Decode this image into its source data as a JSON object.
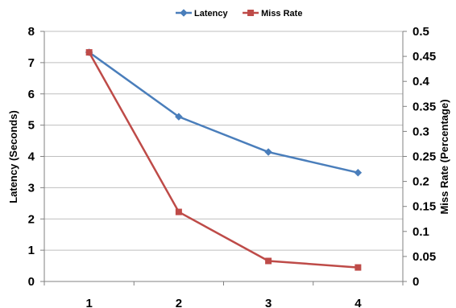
{
  "chart_data": {
    "type": "line",
    "categories": [
      "1",
      "2",
      "3",
      "4"
    ],
    "series": [
      {
        "name": "Latency",
        "axis": "left",
        "color": "#4a7ebb",
        "marker": "diamond",
        "values": [
          7.33,
          5.27,
          4.14,
          3.48
        ]
      },
      {
        "name": "Miss Rate",
        "axis": "right",
        "color": "#be4b48",
        "marker": "square",
        "values": [
          0.458,
          0.139,
          0.041,
          0.028
        ]
      }
    ],
    "y_left": {
      "label": "Latency (Seconds)",
      "min": 0,
      "max": 8,
      "step": 1,
      "ticks": [
        "0",
        "1",
        "2",
        "3",
        "4",
        "5",
        "6",
        "7",
        "8"
      ]
    },
    "y_right": {
      "label": "Miss Rate (Percentage)",
      "min": 0,
      "max": 0.5,
      "step": 0.05,
      "ticks": [
        "0",
        "0.05",
        "0.1",
        "0.15",
        "0.2",
        "0.25",
        "0.3",
        "0.35",
        "0.4",
        "0.45",
        "0.5"
      ]
    },
    "grid": true,
    "legend_position": "top"
  }
}
